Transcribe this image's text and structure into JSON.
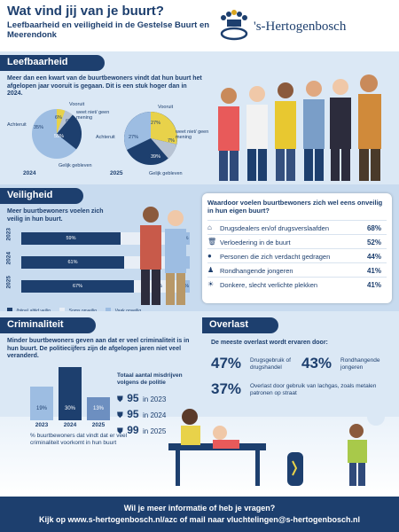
{
  "header": {
    "title": "Wat vind jij van je buurt?",
    "subtitle": "Leefbaarheid en veiligheid in de Gestelse Buurt en Meerendonk",
    "logo_text": "'s-Hertogenbosch"
  },
  "leefbaarheid": {
    "heading": "Leefbaarheid",
    "intro_1": "Meer dan een kwart van de buurtbewoners vindt dat hun buurt het afgelopen jaar vooruit is gegaan.",
    "intro_2": "Dit is een stuk hoger dan in 2024.",
    "pie_2024": {
      "year": "2024",
      "labels": {
        "vooruit": "Vooruit",
        "weet_niet": "weet niet/ geen mening",
        "achteruit": "Achteruit",
        "gelijk": "Gelijk gebleven"
      },
      "values": {
        "vooruit": "6%",
        "weet_niet": "6%",
        "achteruit": "35%",
        "gelijk": "55%"
      }
    },
    "pie_2025": {
      "year": "2025",
      "labels": {
        "vooruit": "Vooruit",
        "weet_niet": "weet niet/ geen mening",
        "achteruit": "Achteruit",
        "gelijk": "Gelijk gebleven"
      },
      "values": {
        "vooruit": "27%",
        "weet_niet": "7%",
        "achteruit": "27%",
        "gelijk": "39%"
      }
    }
  },
  "veiligheid": {
    "heading": "Veiligheid",
    "intro": "Meer buurtbewoners voelen zich veilig in hun buurt.",
    "rows": [
      {
        "year": "2023",
        "a": "59%",
        "b": "35%",
        "c": "6%"
      },
      {
        "year": "2024",
        "a": "61%",
        "b": "28%",
        "c": "11%"
      },
      {
        "year": "2025",
        "a": "67%",
        "b": "28%",
        "c": "5%"
      }
    ],
    "legend": {
      "a": "(bijna) altijd veilig",
      "b": "Soms onveilig",
      "c": "Vaak onveilig"
    },
    "question": "Waardoor voelen buurtbewoners zich wel eens onveilig in hun eigen buurt?",
    "reasons": [
      {
        "label": "Drugsdealers en/of drugsverslaafden",
        "pct": "68%"
      },
      {
        "label": "Verloedering in de buurt",
        "pct": "52%"
      },
      {
        "label": "Personen die zich verdacht gedragen",
        "pct": "44%"
      },
      {
        "label": "Rondhangende jongeren",
        "pct": "41%"
      },
      {
        "label": "Donkere, slecht verlichte plekken",
        "pct": "41%"
      }
    ]
  },
  "criminaliteit": {
    "heading": "Criminaliteit",
    "intro": "Minder buurtbewoners geven aan dat er veel criminaliteit is in hun buurt. De politiecijfers zijn de afgelopen jaren niet veel veranderd.",
    "bars": [
      {
        "pct": "19%",
        "year": "2023",
        "value": 19
      },
      {
        "pct": "30%",
        "year": "2024",
        "value": 30
      },
      {
        "pct": "13%",
        "year": "2025",
        "value": 13
      }
    ],
    "caption": "% buurtbewoners dat vindt dat er veel criminaliteit voorkomt in hun buurt",
    "police_title": "Totaal aantal misdrijven volgens de politie",
    "police": [
      {
        "num": "95",
        "label": "in 2023"
      },
      {
        "num": "95",
        "label": "in 2024"
      },
      {
        "num": "99",
        "label": "in 2025"
      }
    ]
  },
  "overlast": {
    "heading": "Overlast",
    "intro": "De meeste overlast wordt ervaren door:",
    "items": [
      {
        "pct": "47%",
        "label": "Drugsgebruik of drugshandel"
      },
      {
        "pct": "43%",
        "label": "Rondhangende jongeren"
      },
      {
        "pct": "37%",
        "label": "Overlast door gebruik van lachgas, zoals metalen patronen op straat"
      }
    ]
  },
  "footer": {
    "line1": "Wil je meer informatie of heb je vragen?",
    "line2": "Kijk op www.s-hertogenbosch.nl/azc of mail naar vluchtelingen@s-hertogenbosch.nl"
  },
  "colors": {
    "navy": "#1d3f6e",
    "light_blue": "#dbe8f5",
    "mid_blue": "#9dbde2",
    "pale": "#c8dbef",
    "yellow": "#e8d24a",
    "green": "#a8c94a"
  }
}
